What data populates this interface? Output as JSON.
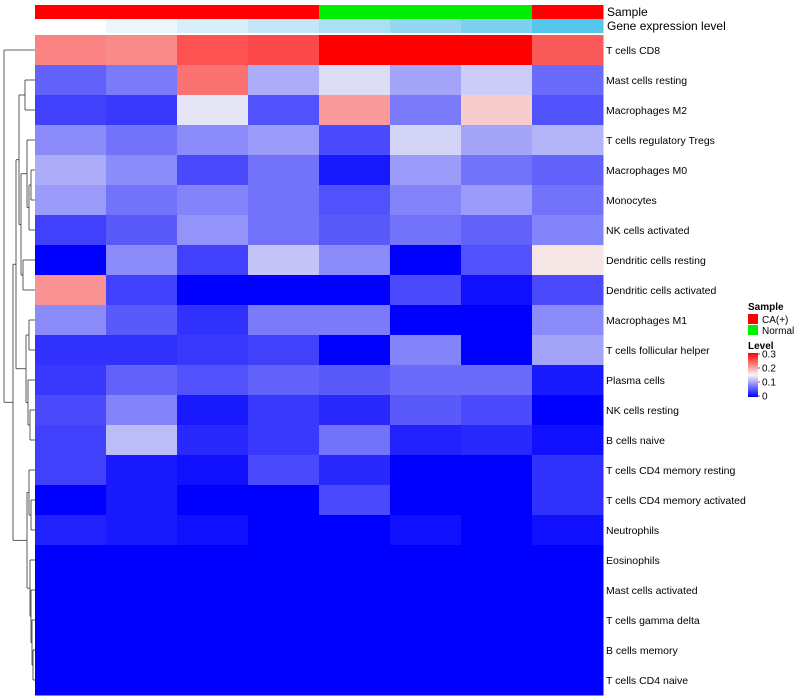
{
  "chart_data": {
    "type": "heatmap",
    "columns": 8,
    "annotation_rows": [
      {
        "name": "Sample",
        "colors": [
          "#ff0000",
          "#ff0000",
          "#ff0000",
          "#ff0000",
          "#00ee00",
          "#00ee00",
          "#00ee00",
          "#ff0000"
        ]
      },
      {
        "name": "Gene expression level",
        "colors": [
          "#ffffff",
          "#eef6fb",
          "#d8eef8",
          "#c4e6f6",
          "#acdff4",
          "#95d7f1",
          "#7dd0ef",
          "#55c6ec"
        ]
      }
    ],
    "rows": [
      {
        "label": "T cells CD8",
        "values": [
          0.22,
          0.215,
          0.25,
          0.255,
          0.3,
          0.3,
          0.3,
          0.245
        ]
      },
      {
        "label": "Mast cells resting",
        "values": [
          0.06,
          0.075,
          0.23,
          0.105,
          0.135,
          0.1,
          0.125,
          0.065
        ]
      },
      {
        "label": "Macrophages M2",
        "values": [
          0.04,
          0.035,
          0.14,
          0.05,
          0.205,
          0.075,
          0.175,
          0.05
        ]
      },
      {
        "label": "T cells regulatory  Tregs",
        "values": [
          0.085,
          0.07,
          0.085,
          0.095,
          0.045,
          0.13,
          0.1,
          0.11
        ]
      },
      {
        "label": "Macrophages M0",
        "values": [
          0.105,
          0.085,
          0.045,
          0.07,
          0.015,
          0.095,
          0.07,
          0.06
        ]
      },
      {
        "label": "Monocytes",
        "values": [
          0.095,
          0.07,
          0.08,
          0.07,
          0.05,
          0.08,
          0.095,
          0.07
        ]
      },
      {
        "label": "NK cells activated",
        "values": [
          0.04,
          0.055,
          0.09,
          0.07,
          0.055,
          0.07,
          0.06,
          0.08
        ]
      },
      {
        "label": "Dendritic cells resting",
        "values": [
          0.0,
          0.085,
          0.04,
          0.12,
          0.085,
          0.0,
          0.05,
          0.16
        ]
      },
      {
        "label": "Dendritic cells activated",
        "values": [
          0.21,
          0.04,
          0.0,
          0.0,
          0.0,
          0.045,
          0.01,
          0.045
        ]
      },
      {
        "label": "Macrophages M1",
        "values": [
          0.085,
          0.055,
          0.03,
          0.075,
          0.075,
          0.0,
          0.0,
          0.085
        ]
      },
      {
        "label": "T cells follicular helper",
        "values": [
          0.03,
          0.03,
          0.035,
          0.04,
          0.0,
          0.08,
          0.0,
          0.1
        ]
      },
      {
        "label": "Plasma cells",
        "values": [
          0.035,
          0.06,
          0.05,
          0.06,
          0.055,
          0.065,
          0.065,
          0.015
        ]
      },
      {
        "label": "NK cells resting",
        "values": [
          0.045,
          0.08,
          0.015,
          0.035,
          0.025,
          0.055,
          0.045,
          0.0
        ]
      },
      {
        "label": "B cells naive",
        "values": [
          0.04,
          0.115,
          0.025,
          0.035,
          0.07,
          0.02,
          0.025,
          0.01
        ]
      },
      {
        "label": "T cells CD4 memory resting",
        "values": [
          0.04,
          0.015,
          0.01,
          0.045,
          0.025,
          0.0,
          0.0,
          0.03
        ]
      },
      {
        "label": "T cells CD4 memory activated",
        "values": [
          0.0,
          0.015,
          0.0,
          0.0,
          0.045,
          0.0,
          0.0,
          0.03
        ]
      },
      {
        "label": "Neutrophils",
        "values": [
          0.02,
          0.015,
          0.01,
          0.0,
          0.0,
          0.01,
          0.0,
          0.01
        ]
      },
      {
        "label": "Eosinophils",
        "values": [
          0.0,
          0.0,
          0.0,
          0.0,
          0.0,
          0.0,
          0.0,
          0.0
        ]
      },
      {
        "label": "Mast cells activated",
        "values": [
          0.0,
          0.0,
          0.0,
          0.0,
          0.0,
          0.0,
          0.0,
          0.0
        ]
      },
      {
        "label": "T cells gamma delta",
        "values": [
          0.0,
          0.0,
          0.0,
          0.0,
          0.0,
          0.0,
          0.0,
          0.0
        ]
      },
      {
        "label": "B cells memory",
        "values": [
          0.0,
          0.0,
          0.0,
          0.0,
          0.0,
          0.0,
          0.0,
          0.0
        ]
      },
      {
        "label": "T cells CD4 naive",
        "values": [
          0.0,
          0.0,
          0.0,
          0.0,
          0.0,
          0.0,
          0.0,
          0.0
        ]
      }
    ],
    "color_scale": {
      "min": 0,
      "mid": 0.15,
      "max": 0.3,
      "low_color": "#0000ff",
      "mid_color": "#f5f5f5",
      "high_color": "#ff0000"
    },
    "legend": {
      "sample_title": "Sample",
      "sample_entries": [
        {
          "label": "CA(+)",
          "color": "#ff0000"
        },
        {
          "label": "Normal",
          "color": "#00ee00"
        }
      ],
      "level_title": "Level",
      "level_ticks": [
        "0.3",
        "0.2",
        "0.1",
        "0"
      ]
    }
  }
}
